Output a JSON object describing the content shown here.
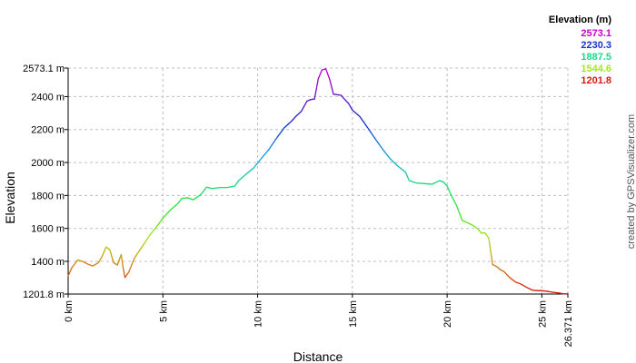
{
  "chart_data": {
    "type": "line",
    "xlabel": "Distance",
    "ylabel": "Elevation",
    "xlim": [
      0,
      26.371
    ],
    "ylim": [
      1201.8,
      2573.1
    ],
    "x_ticks": [
      {
        "value": 0,
        "label": "0 km"
      },
      {
        "value": 5,
        "label": "5 km"
      },
      {
        "value": 10,
        "label": "10 km"
      },
      {
        "value": 15,
        "label": "15 km"
      },
      {
        "value": 20,
        "label": "20 km"
      },
      {
        "value": 25,
        "label": "25 km"
      },
      {
        "value": 26.371,
        "label": "26.371 km"
      }
    ],
    "y_ticks": [
      {
        "value": 1201.8,
        "label": "1201.8 m"
      },
      {
        "value": 1400,
        "label": "1400 m"
      },
      {
        "value": 1600,
        "label": "1600 m"
      },
      {
        "value": 1800,
        "label": "1800 m"
      },
      {
        "value": 2000,
        "label": "2000 m"
      },
      {
        "value": 2200,
        "label": "2200 m"
      },
      {
        "value": 2400,
        "label": "2400 m"
      },
      {
        "value": 2573.1,
        "label": "2573.1 m"
      }
    ],
    "legend": {
      "title": "Elevation (m)",
      "placement": "top-right",
      "entries": [
        {
          "label": "2573.1",
          "color": "#cc00cc"
        },
        {
          "label": "2230.3",
          "color": "#1a33cc"
        },
        {
          "label": "1887.5",
          "color": "#1ad98c"
        },
        {
          "label": "1544.6",
          "color": "#a6e61a"
        },
        {
          "label": "1201.8",
          "color": "#d91a1a"
        }
      ]
    },
    "grid": true,
    "color_scale": {
      "stops": [
        {
          "value": 1201.8,
          "color": "#d91a1a"
        },
        {
          "value": 1373.2,
          "color": "#d9801a"
        },
        {
          "value": 1544.6,
          "color": "#a6e61a"
        },
        {
          "value": 1716.0,
          "color": "#33e633"
        },
        {
          "value": 1887.5,
          "color": "#1ad98c"
        },
        {
          "value": 2058.9,
          "color": "#1a99e6"
        },
        {
          "value": 2230.3,
          "color": "#1a33cc"
        },
        {
          "value": 2401.7,
          "color": "#6619cc"
        },
        {
          "value": 2573.1,
          "color": "#cc00cc"
        }
      ]
    },
    "x": [
      0,
      0.2,
      0.5,
      0.8,
      1.0,
      1.3,
      1.6,
      1.8,
      2.0,
      2.2,
      2.4,
      2.6,
      2.8,
      2.9,
      3.0,
      3.2,
      3.5,
      3.8,
      4.0,
      4.3,
      4.6,
      5.0,
      5.4,
      5.8,
      6.0,
      6.3,
      6.6,
      7.0,
      7.3,
      7.6,
      8.0,
      8.4,
      8.8,
      9.0,
      9.4,
      9.8,
      10.2,
      10.6,
      11.0,
      11.4,
      11.8,
      12.0,
      12.3,
      12.6,
      12.8,
      13.0,
      13.2,
      13.4,
      13.6,
      13.8,
      14.0,
      14.4,
      14.8,
      15.0,
      15.4,
      15.8,
      16.2,
      16.6,
      17.0,
      17.4,
      17.8,
      18.0,
      18.4,
      18.8,
      19.2,
      19.6,
      19.8,
      20.0,
      20.2,
      20.5,
      20.8,
      21.0,
      21.3,
      21.6,
      21.8,
      22.0,
      22.2,
      22.4,
      22.6,
      22.8,
      23.0,
      23.3,
      23.6,
      23.9,
      24.2,
      24.5,
      24.8,
      25.0,
      25.3,
      25.6,
      25.9,
      26.2,
      26.371
    ],
    "y": [
      1312,
      1362,
      1408,
      1398,
      1385,
      1372,
      1392,
      1432,
      1487,
      1470,
      1392,
      1378,
      1442,
      1362,
      1302,
      1335,
      1420,
      1472,
      1505,
      1558,
      1600,
      1662,
      1712,
      1752,
      1782,
      1786,
      1774,
      1805,
      1850,
      1842,
      1848,
      1848,
      1858,
      1890,
      1930,
      1968,
      2025,
      2080,
      2148,
      2210,
      2252,
      2278,
      2310,
      2372,
      2382,
      2385,
      2508,
      2562,
      2568,
      2505,
      2415,
      2408,
      2358,
      2318,
      2278,
      2212,
      2145,
      2080,
      2022,
      1978,
      1942,
      1890,
      1875,
      1872,
      1868,
      1890,
      1882,
      1858,
      1805,
      1738,
      1648,
      1638,
      1622,
      1600,
      1572,
      1572,
      1540,
      1380,
      1370,
      1350,
      1338,
      1302,
      1275,
      1262,
      1242,
      1225,
      1222,
      1222,
      1218,
      1212,
      1208,
      1202,
      1205
    ]
  },
  "credit": {
    "text": "created by GPSVisualizer.com"
  }
}
